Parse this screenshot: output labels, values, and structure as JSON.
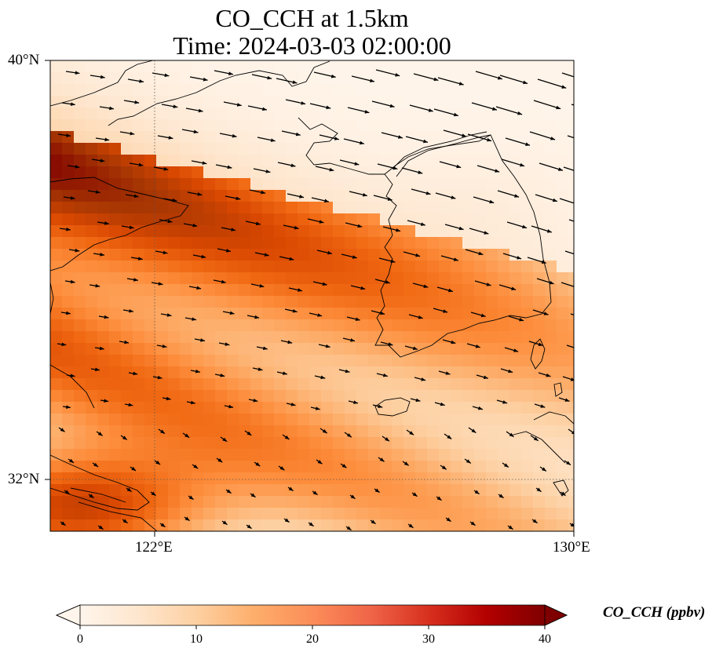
{
  "title": {
    "line1": "CO_CCH at 1.5km",
    "line2": "Time: 2024-03-03 02:00:00"
  },
  "axes": {
    "lon_ticks": [
      "122°E",
      "130°E"
    ],
    "lat_ticks": [
      "40°N",
      "32°N"
    ],
    "lon_range": [
      120,
      130
    ],
    "lat_range": [
      31,
      40
    ]
  },
  "colorbar": {
    "label": "CO_CCH (ppbv)",
    "ticks": [
      "0",
      "10",
      "20",
      "30",
      "40"
    ],
    "range": [
      0,
      40
    ],
    "extend": "both",
    "colors": [
      "#fff5eb",
      "#fee6ce",
      "#fdd0a2",
      "#fdae6b",
      "#fd8d3c",
      "#f16913",
      "#d94801",
      "#a63603",
      "#7f0000"
    ]
  },
  "chart_data": {
    "type": "heatmap",
    "field": "CO_CCH",
    "units": "ppbv",
    "level": "1.5km",
    "time": "2024-03-03 02:00:00",
    "gridlines": {
      "lon": [
        122,
        130
      ],
      "lat": [
        32,
        40
      ],
      "style": "dotted"
    },
    "wind_vectors": true
  }
}
